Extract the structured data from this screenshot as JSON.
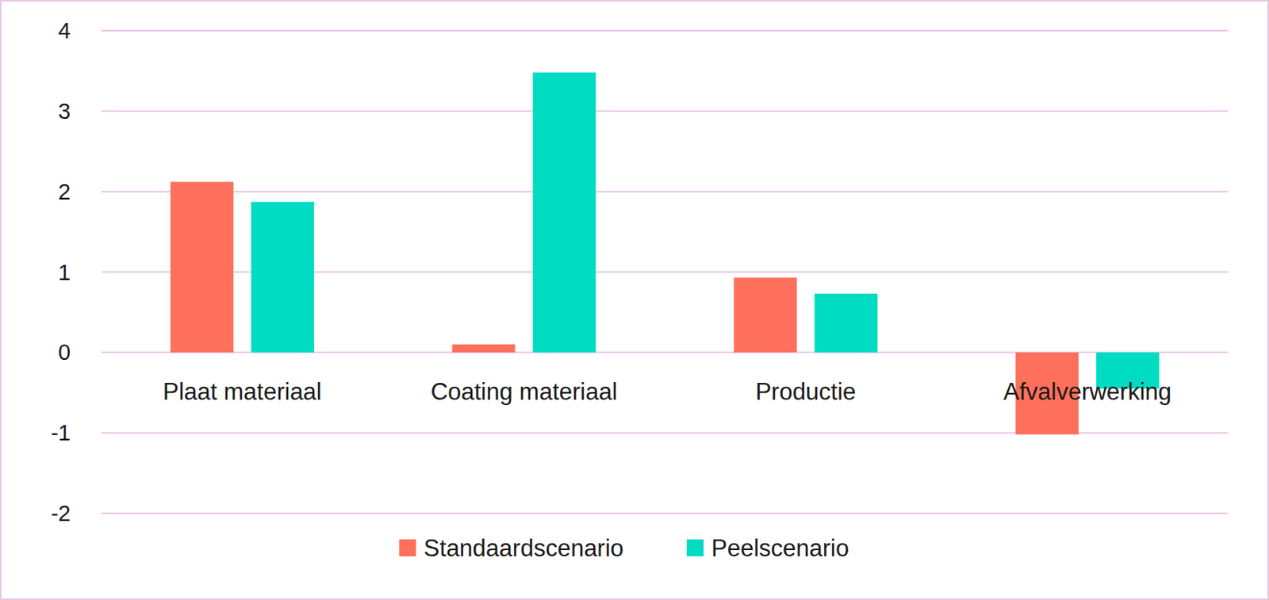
{
  "chart_data": {
    "type": "bar",
    "categories": [
      "Plaat materiaal",
      "Coating materiaal",
      "Productie",
      "Afvalverwerking"
    ],
    "series": [
      {
        "name": "Standaardscenario",
        "color": "#ff705c",
        "values": [
          2.12,
          0.1,
          0.93,
          -1.02
        ]
      },
      {
        "name": "Peelscenario",
        "color": "#00dcc2",
        "values": [
          1.87,
          3.48,
          0.73,
          -0.45
        ]
      }
    ],
    "ylim": [
      -2,
      4
    ],
    "yticks": [
      -2,
      -1,
      0,
      1,
      2,
      3,
      4
    ],
    "grid": true,
    "legend": "bottom"
  }
}
